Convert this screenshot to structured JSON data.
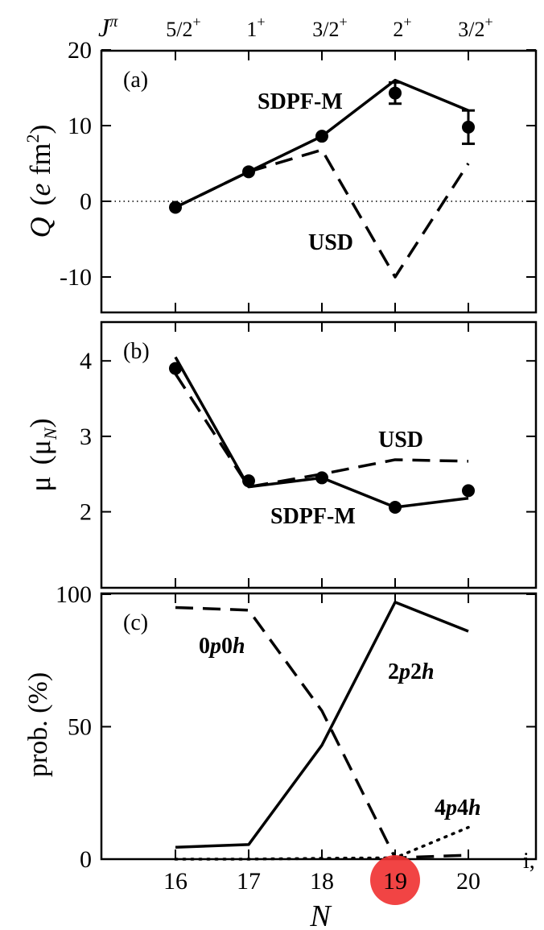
{
  "figure": {
    "jpi_symbol": "J",
    "jpi_sup": "π",
    "jpi": [
      {
        "base": "5/2",
        "sup": "+"
      },
      {
        "base": "1",
        "sup": "+"
      },
      {
        "base": "3/2",
        "sup": "+"
      },
      {
        "base": "2",
        "sup": "+"
      },
      {
        "base": "3/2",
        "sup": "+"
      }
    ],
    "xlabel": "N",
    "x_ticks": [
      "16",
      "17",
      "18",
      "19",
      "20"
    ],
    "highlight": {
      "x": 19,
      "label": "19",
      "color": "#f03030"
    },
    "edge_text": "i,"
  },
  "chart_data": [
    {
      "type": "line",
      "panel": "(a)",
      "ylabel": {
        "q": "Q",
        "open": "(",
        "e": "e",
        "fm": "fm",
        "exp": "2",
        "close": ")"
      },
      "x": [
        16,
        17,
        18,
        19,
        20
      ],
      "ylim": [
        -15,
        20
      ],
      "yticks": [
        -10,
        0,
        10,
        20
      ],
      "ytick_labels": [
        "-10",
        "0",
        "10",
        "20"
      ],
      "zero_line": true,
      "series": [
        {
          "name": "SDPF-M",
          "style": "solid",
          "values": [
            -0.8,
            3.9,
            8.6,
            16.0,
            12.0
          ]
        },
        {
          "name": "USD",
          "style": "dashed",
          "values": [
            -0.8,
            3.9,
            6.8,
            -10.0,
            5.0
          ]
        },
        {
          "name": "experiment",
          "style": "points",
          "x": [
            16,
            17,
            18,
            19,
            20
          ],
          "values": [
            -0.8,
            3.9,
            8.6,
            14.3,
            9.8
          ],
          "err": [
            0,
            0,
            0,
            1.4,
            2.2
          ]
        }
      ],
      "annotations": [
        "SDPF-M",
        "USD"
      ]
    },
    {
      "type": "line",
      "panel": "(b)",
      "ylabel": {
        "mu": "μ",
        "open": "(",
        "mu2": "μ",
        "sub": "N",
        "close": ")"
      },
      "x": [
        16,
        17,
        18,
        19,
        20
      ],
      "ylim": [
        1,
        4.5
      ],
      "yticks": [
        2,
        3,
        4
      ],
      "ytick_labels": [
        "2",
        "3",
        "4"
      ],
      "series": [
        {
          "name": "SDPF-M",
          "style": "solid",
          "values": [
            4.05,
            2.33,
            2.45,
            2.06,
            2.18
          ]
        },
        {
          "name": "USD",
          "style": "dashed",
          "values": [
            3.83,
            2.33,
            2.5,
            2.69,
            2.67
          ]
        },
        {
          "name": "experiment",
          "style": "points",
          "x": [
            16,
            17,
            18,
            19,
            20
          ],
          "values": [
            3.9,
            2.41,
            2.45,
            2.06,
            2.28
          ]
        }
      ],
      "annotations": [
        "USD",
        "SDPF-M"
      ]
    },
    {
      "type": "line",
      "panel": "(c)",
      "ylabel": "prob.  (%)",
      "x": [
        16,
        17,
        18,
        19,
        20
      ],
      "ylim": [
        0,
        100
      ],
      "yticks": [
        0,
        50,
        100
      ],
      "ytick_labels": [
        "0",
        "50",
        "100"
      ],
      "series": [
        {
          "name": "0p0h",
          "style": "dashed",
          "values": [
            95,
            94,
            56,
            0.5,
            1.5
          ]
        },
        {
          "name": "2p2h",
          "style": "solid",
          "values": [
            4.5,
            5.5,
            43,
            97,
            86
          ]
        },
        {
          "name": "4p4h",
          "style": "dotted",
          "values": [
            0,
            0,
            0.3,
            0.5,
            12
          ]
        }
      ],
      "annotations": [
        "0p0h",
        "2p2h",
        "4p4h"
      ]
    }
  ]
}
